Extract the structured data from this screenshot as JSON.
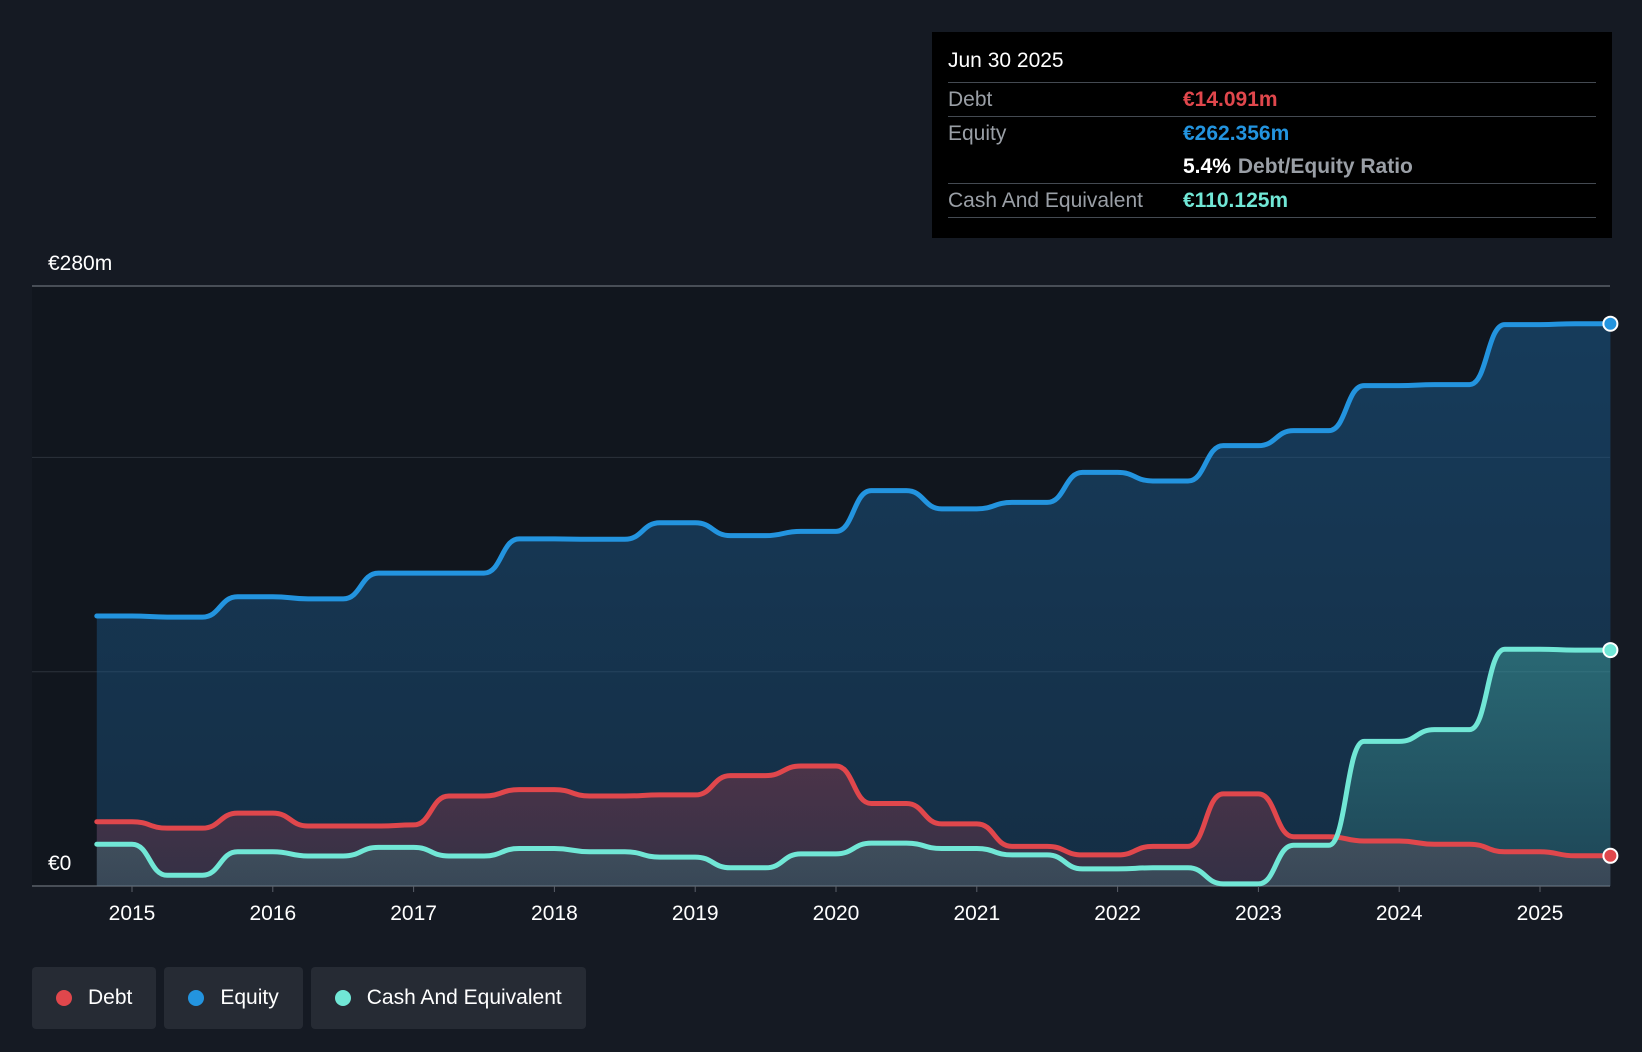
{
  "colors": {
    "background": "#151a23",
    "debt": "#e0474c",
    "equity": "#2394df",
    "cash": "#71e7d6",
    "grid": "#2c323b",
    "axis_text": "#ffffff"
  },
  "tooltip": {
    "date": "Jun 30 2025",
    "debt_label": "Debt",
    "debt_value": "€14.091m",
    "equity_label": "Equity",
    "equity_value": "€262.356m",
    "ratio_value": "5.4%",
    "ratio_label": "Debt/Equity Ratio",
    "cash_label": "Cash And Equivalent",
    "cash_value": "€110.125m"
  },
  "legend": {
    "items": [
      {
        "label": "Debt",
        "color": "#e0474c"
      },
      {
        "label": "Equity",
        "color": "#2394df"
      },
      {
        "label": "Cash And Equivalent",
        "color": "#71e7d6"
      }
    ]
  },
  "chart_data": {
    "type": "area",
    "title": "",
    "xlabel": "",
    "ylabel": "",
    "ylim": [
      0,
      280
    ],
    "y_tick_labels": {
      "top": "€280m",
      "bottom": "€0"
    },
    "gridlines": [
      0,
      100,
      200,
      280
    ],
    "x_ticks": [
      2015,
      2016,
      2017,
      2018,
      2019,
      2020,
      2021,
      2022,
      2023,
      2024,
      2025
    ],
    "x_range": [
      2014.73,
      2025.5
    ],
    "series": [
      {
        "name": "Equity",
        "key": "equity",
        "points": [
          [
            2014.75,
            126
          ],
          [
            2015.0,
            126
          ],
          [
            2015.25,
            125.5
          ],
          [
            2015.5,
            125.5
          ],
          [
            2015.75,
            135
          ],
          [
            2016.0,
            135
          ],
          [
            2016.25,
            134
          ],
          [
            2016.5,
            134
          ],
          [
            2016.75,
            146
          ],
          [
            2017.0,
            146
          ],
          [
            2017.25,
            146
          ],
          [
            2017.5,
            146
          ],
          [
            2017.75,
            162
          ],
          [
            2018.0,
            162
          ],
          [
            2018.25,
            161.8
          ],
          [
            2018.5,
            161.8
          ],
          [
            2018.75,
            169.5
          ],
          [
            2019.0,
            169.5
          ],
          [
            2019.25,
            163.5
          ],
          [
            2019.5,
            163.5
          ],
          [
            2019.75,
            165.5
          ],
          [
            2020.0,
            165.5
          ],
          [
            2020.25,
            184.5
          ],
          [
            2020.5,
            184.5
          ],
          [
            2020.75,
            176
          ],
          [
            2021.0,
            176
          ],
          [
            2021.25,
            179
          ],
          [
            2021.5,
            179
          ],
          [
            2021.75,
            193
          ],
          [
            2022.0,
            193
          ],
          [
            2022.25,
            189
          ],
          [
            2022.5,
            189
          ],
          [
            2022.75,
            205.5
          ],
          [
            2023.0,
            205.5
          ],
          [
            2023.25,
            212.5
          ],
          [
            2023.5,
            212.5
          ],
          [
            2023.75,
            233.5
          ],
          [
            2024.0,
            233.5
          ],
          [
            2024.25,
            234
          ],
          [
            2024.5,
            234
          ],
          [
            2024.75,
            262
          ],
          [
            2025.0,
            262
          ],
          [
            2025.25,
            262.4
          ],
          [
            2025.5,
            262.4
          ]
        ]
      },
      {
        "name": "Debt",
        "key": "debt",
        "points": [
          [
            2014.75,
            30
          ],
          [
            2015.0,
            30
          ],
          [
            2015.25,
            27
          ],
          [
            2015.5,
            27
          ],
          [
            2015.75,
            34
          ],
          [
            2016.0,
            34
          ],
          [
            2016.25,
            28
          ],
          [
            2016.5,
            28
          ],
          [
            2016.75,
            28
          ],
          [
            2017.0,
            28.5
          ],
          [
            2017.25,
            42
          ],
          [
            2017.5,
            42
          ],
          [
            2017.75,
            45
          ],
          [
            2018.0,
            45
          ],
          [
            2018.25,
            42
          ],
          [
            2018.5,
            42
          ],
          [
            2018.75,
            42.5
          ],
          [
            2019.0,
            42.5
          ],
          [
            2019.25,
            51.5
          ],
          [
            2019.5,
            51.5
          ],
          [
            2019.75,
            56
          ],
          [
            2020.0,
            56
          ],
          [
            2020.25,
            38.5
          ],
          [
            2020.5,
            38.5
          ],
          [
            2020.75,
            29
          ],
          [
            2021.0,
            29
          ],
          [
            2021.25,
            18.5
          ],
          [
            2021.5,
            18.5
          ],
          [
            2021.75,
            14.5
          ],
          [
            2022.0,
            14.5
          ],
          [
            2022.25,
            18.5
          ],
          [
            2022.5,
            18.5
          ],
          [
            2022.75,
            43
          ],
          [
            2023.0,
            43
          ],
          [
            2023.25,
            23
          ],
          [
            2023.5,
            23
          ],
          [
            2023.75,
            21
          ],
          [
            2024.0,
            21
          ],
          [
            2024.25,
            19.5
          ],
          [
            2024.5,
            19.5
          ],
          [
            2024.75,
            16
          ],
          [
            2025.0,
            16
          ],
          [
            2025.25,
            14.1
          ],
          [
            2025.5,
            14.1
          ]
        ]
      },
      {
        "name": "Cash And Equivalent",
        "key": "cash",
        "points": [
          [
            2014.75,
            19.5
          ],
          [
            2015.0,
            19.5
          ],
          [
            2015.25,
            5
          ],
          [
            2015.5,
            5
          ],
          [
            2015.75,
            16
          ],
          [
            2016.0,
            16
          ],
          [
            2016.25,
            14
          ],
          [
            2016.5,
            14
          ],
          [
            2016.75,
            18
          ],
          [
            2017.0,
            18
          ],
          [
            2017.25,
            14
          ],
          [
            2017.5,
            14
          ],
          [
            2017.75,
            17.5
          ],
          [
            2018.0,
            17.5
          ],
          [
            2018.25,
            16
          ],
          [
            2018.5,
            16
          ],
          [
            2018.75,
            13.5
          ],
          [
            2019.0,
            13.5
          ],
          [
            2019.25,
            8.5
          ],
          [
            2019.5,
            8.5
          ],
          [
            2019.75,
            15
          ],
          [
            2020.0,
            15
          ],
          [
            2020.25,
            20
          ],
          [
            2020.5,
            20
          ],
          [
            2020.75,
            17.5
          ],
          [
            2021.0,
            17.5
          ],
          [
            2021.25,
            14.5
          ],
          [
            2021.5,
            14.5
          ],
          [
            2021.75,
            8
          ],
          [
            2022.0,
            8
          ],
          [
            2022.25,
            8.5
          ],
          [
            2022.5,
            8.5
          ],
          [
            2022.75,
            1
          ],
          [
            2023.0,
            1
          ],
          [
            2023.25,
            19
          ],
          [
            2023.5,
            19
          ],
          [
            2023.75,
            67.5
          ],
          [
            2024.0,
            67.5
          ],
          [
            2024.25,
            73
          ],
          [
            2024.5,
            73
          ],
          [
            2024.75,
            110.5
          ],
          [
            2025.0,
            110.5
          ],
          [
            2025.25,
            110.1
          ],
          [
            2025.5,
            110.1
          ]
        ]
      }
    ]
  }
}
